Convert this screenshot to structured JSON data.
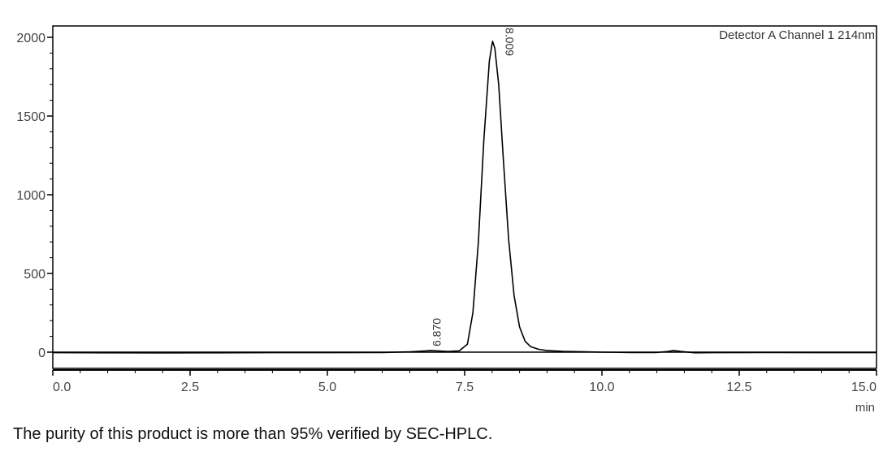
{
  "chart_data": {
    "type": "line",
    "detector_label": "Detector A Channel 1 214nm",
    "x_unit": "min",
    "xlim": [
      0,
      15
    ],
    "ylim": [
      -100,
      2050
    ],
    "x_ticks": [
      0.0,
      2.5,
      5.0,
      7.5,
      10.0,
      12.5,
      15.0
    ],
    "x_tick_labels": [
      "0.0",
      "2.5",
      "5.0",
      "7.5",
      "10.0",
      "12.5",
      "15.0"
    ],
    "y_ticks": [
      0,
      500,
      1000,
      1500,
      2000
    ],
    "y_tick_labels": [
      "0",
      "500",
      "1000",
      "1500",
      "2000"
    ],
    "grid": false,
    "baseline": 0,
    "series": [
      {
        "x": [
          0.0,
          1.0,
          2.0,
          3.0,
          4.0,
          5.0,
          6.0,
          6.5,
          6.8,
          6.87,
          7.0,
          7.2,
          7.4,
          7.55,
          7.65,
          7.75,
          7.85,
          7.95,
          8.0,
          8.009,
          8.05,
          8.12,
          8.2,
          8.3,
          8.4,
          8.5,
          8.6,
          8.7,
          8.85,
          9.0,
          9.3,
          9.7,
          10.0,
          10.5,
          11.0,
          11.2,
          11.3,
          11.45,
          11.7,
          12.0,
          13.0,
          14.0,
          15.0
        ],
        "y": [
          -3,
          -4,
          -5,
          -4,
          -3,
          -3,
          -2,
          2,
          8,
          10,
          8,
          4,
          8,
          50,
          250,
          700,
          1350,
          1850,
          1960,
          1975,
          1930,
          1700,
          1250,
          720,
          360,
          160,
          70,
          35,
          18,
          10,
          5,
          2,
          0,
          -2,
          -2,
          4,
          10,
          4,
          -4,
          -3,
          -2,
          -3,
          -3
        ]
      }
    ],
    "peak_labels": [
      {
        "x": 6.87,
        "y": 10,
        "label": "6.870"
      },
      {
        "x": 8.009,
        "y": 1975,
        "label": "8.009"
      }
    ]
  },
  "caption": "The purity of this product is more than 95% verified by SEC-HPLC."
}
